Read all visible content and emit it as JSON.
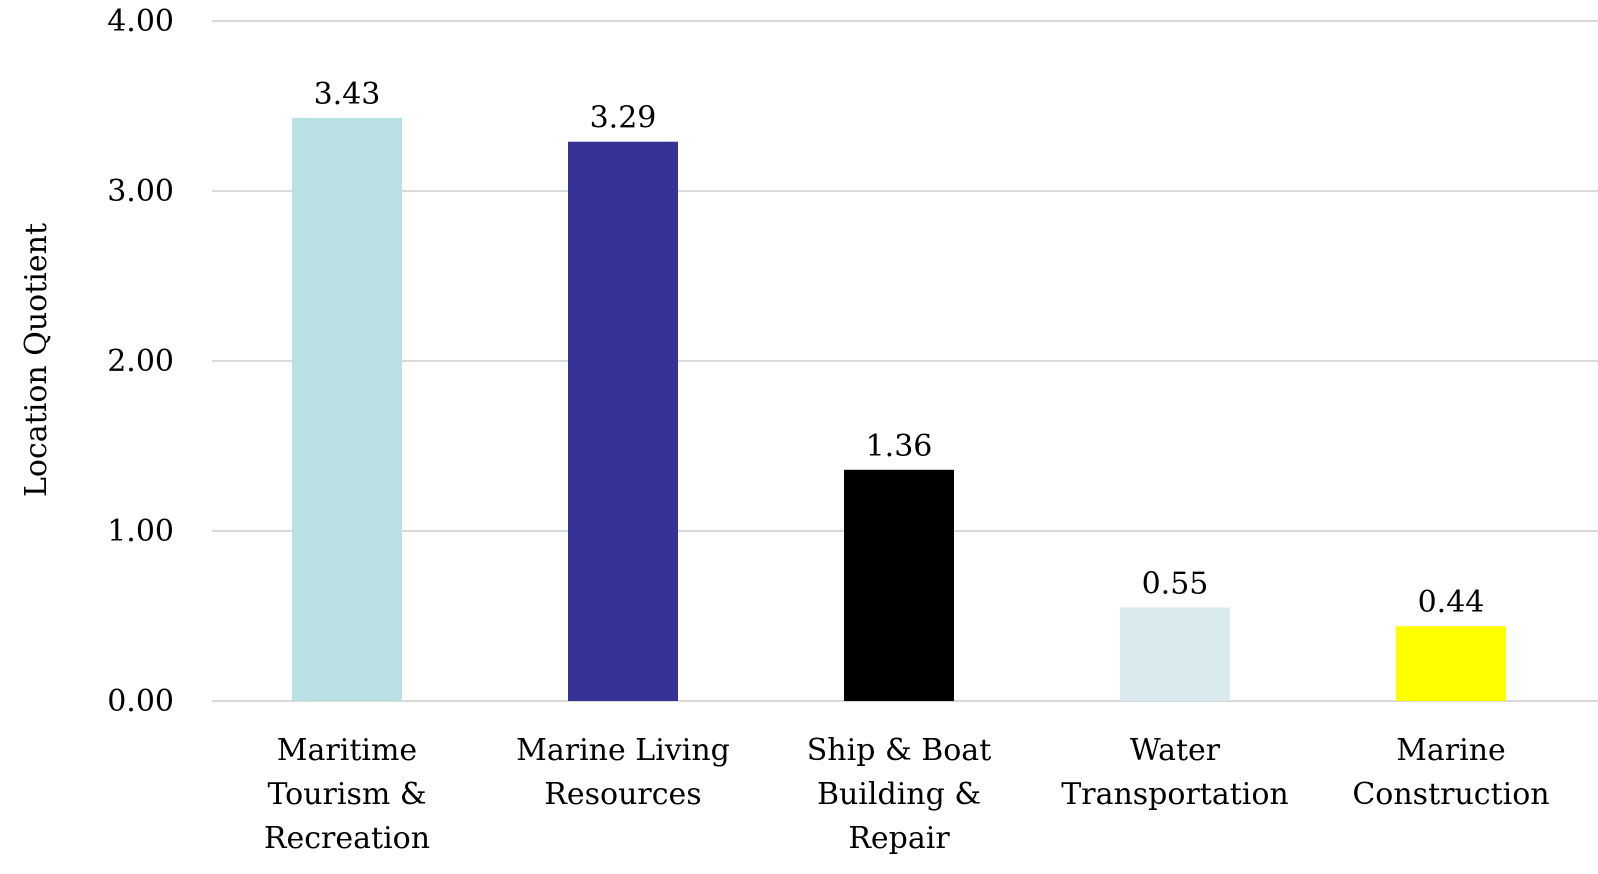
{
  "chart_data": {
    "type": "bar",
    "title": "",
    "xlabel": "",
    "ylabel": "Location Quotient",
    "ylim": [
      0,
      4
    ],
    "yticks": [
      "0.00",
      "1.00",
      "2.00",
      "3.00",
      "4.00"
    ],
    "grid": true,
    "legend": "none",
    "categories": [
      [
        "Maritime",
        "Tourism &",
        "Recreation"
      ],
      [
        "Marine Living",
        "Resources"
      ],
      [
        "Ship & Boat",
        "Building &",
        "Repair"
      ],
      [
        "Water",
        "Transportation"
      ],
      [
        "Marine",
        "Construction"
      ]
    ],
    "values": [
      3.43,
      3.29,
      1.36,
      0.55,
      0.44
    ],
    "data_labels": [
      "3.43",
      "3.29",
      "1.36",
      "0.55",
      "0.44"
    ],
    "bar_colors": [
      "#b9e0e3",
      "#353395",
      "#000000",
      "#d9ebee",
      "#ffff00"
    ],
    "grid_color": "#d9d9d9"
  }
}
